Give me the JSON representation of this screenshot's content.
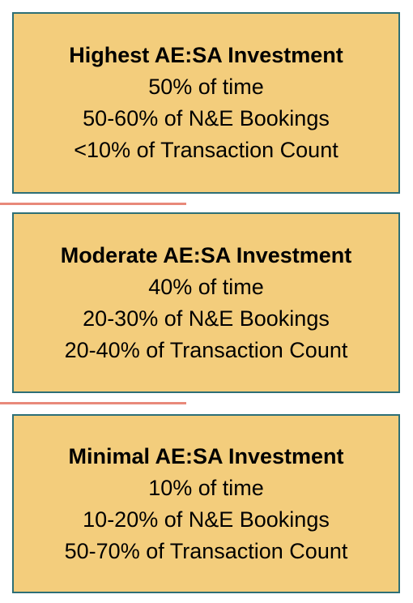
{
  "colors": {
    "box_fill": "#f3cd7c",
    "box_border": "#2d6f76",
    "separator": "#e8897a",
    "text": "#000000"
  },
  "tiers": [
    {
      "title": "Highest AE:SA Investment",
      "lines": [
        "50% of time",
        "50-60% of N&E Bookings",
        "<10% of Transaction Count"
      ]
    },
    {
      "title": "Moderate AE:SA Investment",
      "lines": [
        "40% of time",
        "20-30% of N&E Bookings",
        "20-40% of Transaction Count"
      ]
    },
    {
      "title": "Minimal AE:SA Investment",
      "lines": [
        "10% of time",
        "10-20% of N&E Bookings",
        "50-70% of Transaction Count"
      ]
    }
  ]
}
